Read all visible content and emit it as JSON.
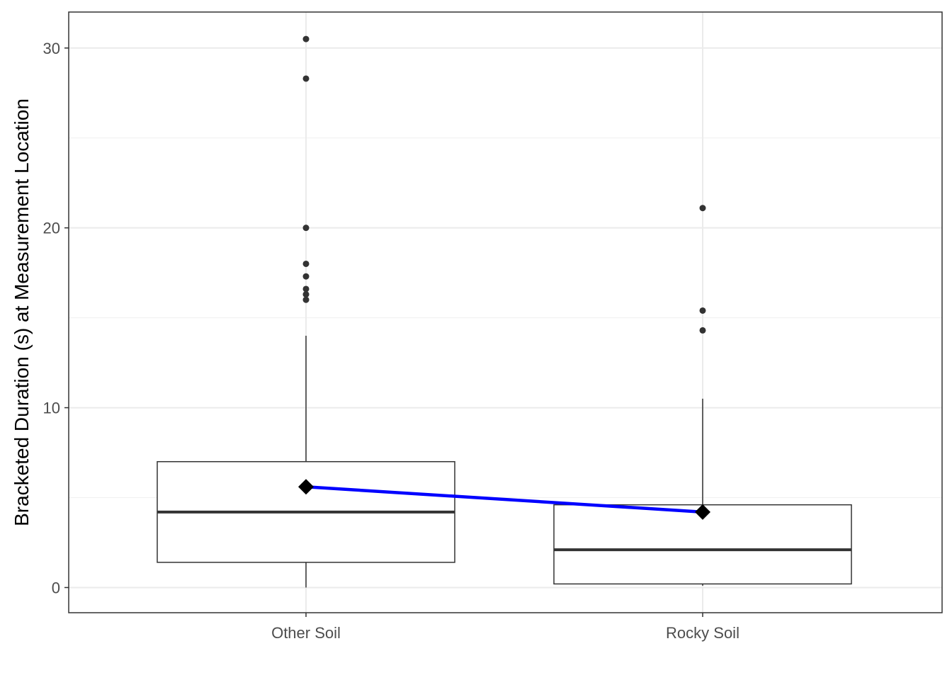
{
  "chart_data": {
    "type": "boxplot",
    "title": "",
    "xlabel": "",
    "ylabel": "Bracketed Duration (s) at Measurement Location",
    "categories": [
      "Other Soil",
      "Rocky Soil"
    ],
    "ylim": [
      -1.4,
      32.0
    ],
    "yticks": [
      0,
      10,
      20,
      30
    ],
    "yticks_labels": [
      "0",
      "10",
      "20",
      "30"
    ],
    "grid": true,
    "boxes": [
      {
        "category": "Other Soil",
        "whisker_low": 0.0,
        "q1": 1.4,
        "median": 4.2,
        "q3": 7.0,
        "whisker_high": 14.0,
        "mean": 5.6,
        "outliers": [
          16.0,
          16.3,
          16.6,
          17.3,
          18.0,
          20.0,
          28.3,
          30.5
        ]
      },
      {
        "category": "Rocky Soil",
        "whisker_low": 0.1,
        "q1": 0.2,
        "median": 2.1,
        "q3": 4.6,
        "whisker_high": 10.5,
        "mean": 4.2,
        "outliers": [
          14.3,
          15.4,
          21.1
        ]
      }
    ],
    "mean_line_color": "#0000ff",
    "mean_marker_color": "#000000",
    "box_line_color": "#333333"
  }
}
